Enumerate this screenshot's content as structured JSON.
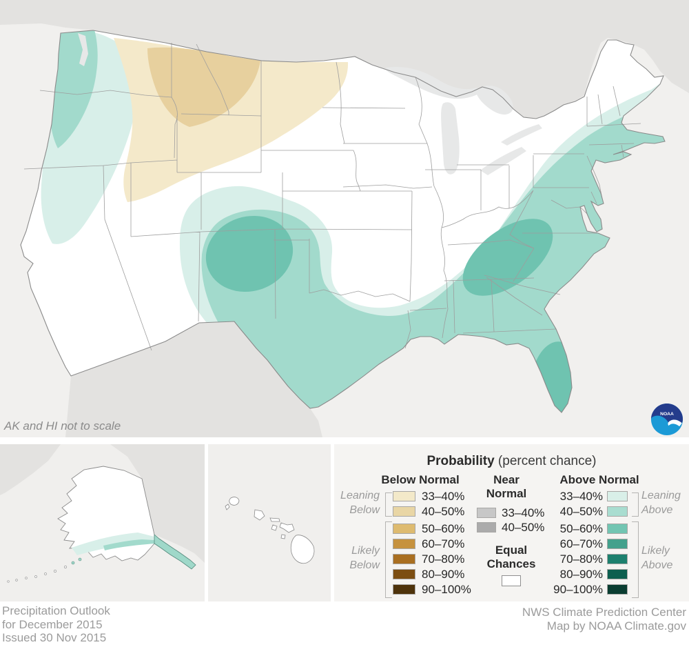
{
  "map": {
    "note": "AK and HI not to scale",
    "palette": {
      "ocean": "#f1f0ee",
      "foreign_land": "#e3e2e0",
      "lakes": "#e7e8e8",
      "equal_chances": "#ffffff"
    }
  },
  "legend": {
    "title": "Probability",
    "title_suffix": " (percent chance)",
    "below": {
      "header": "Below Normal",
      "bracket_leaning_1": "Leaning",
      "bracket_leaning_2": "Below",
      "bracket_likely_1": "Likely",
      "bracket_likely_2": "Below",
      "rows": [
        {
          "range": "33–40%",
          "color": "#f3e9c9"
        },
        {
          "range": "40–50%",
          "color": "#e9d6a5"
        },
        {
          "range": "50–60%",
          "color": "#debb70"
        },
        {
          "range": "60–70%",
          "color": "#c6923e"
        },
        {
          "range": "70–80%",
          "color": "#a96f21"
        },
        {
          "range": "80–90%",
          "color": "#7c4e12"
        },
        {
          "range": "90–100%",
          "color": "#4e330b"
        }
      ]
    },
    "near": {
      "header_line1": "Near",
      "header_line2": "Normal",
      "equal_line1": "Equal",
      "equal_line2": "Chances",
      "equal_color": "#ffffff",
      "rows": [
        {
          "range": "33–40%",
          "color": "#c7c7c7"
        },
        {
          "range": "40–50%",
          "color": "#ababab"
        }
      ]
    },
    "above": {
      "header": "Above Normal",
      "bracket_leaning_1": "Leaning",
      "bracket_leaning_2": "Above",
      "bracket_likely_1": "Likely",
      "bracket_likely_2": "Above",
      "rows": [
        {
          "range": "33–40%",
          "color": "#d9efe8"
        },
        {
          "range": "40–50%",
          "color": "#a9ddd0"
        },
        {
          "range": "50–60%",
          "color": "#72c5b2"
        },
        {
          "range": "60–70%",
          "color": "#43a18c"
        },
        {
          "range": "70–80%",
          "color": "#1d806e"
        },
        {
          "range": "80–90%",
          "color": "#0d5f4f"
        },
        {
          "range": "90–100%",
          "color": "#0a3d31"
        }
      ]
    }
  },
  "logo": {
    "label": "NOAA"
  },
  "footer": {
    "left_line1": "Precipitation Outlook",
    "left_line2": "for December 2015",
    "left_line3": "Issued 30 Nov 2015",
    "right_line1": "NWS Climate Prediction Center",
    "right_line2": "Map by NOAA Climate.gov"
  }
}
